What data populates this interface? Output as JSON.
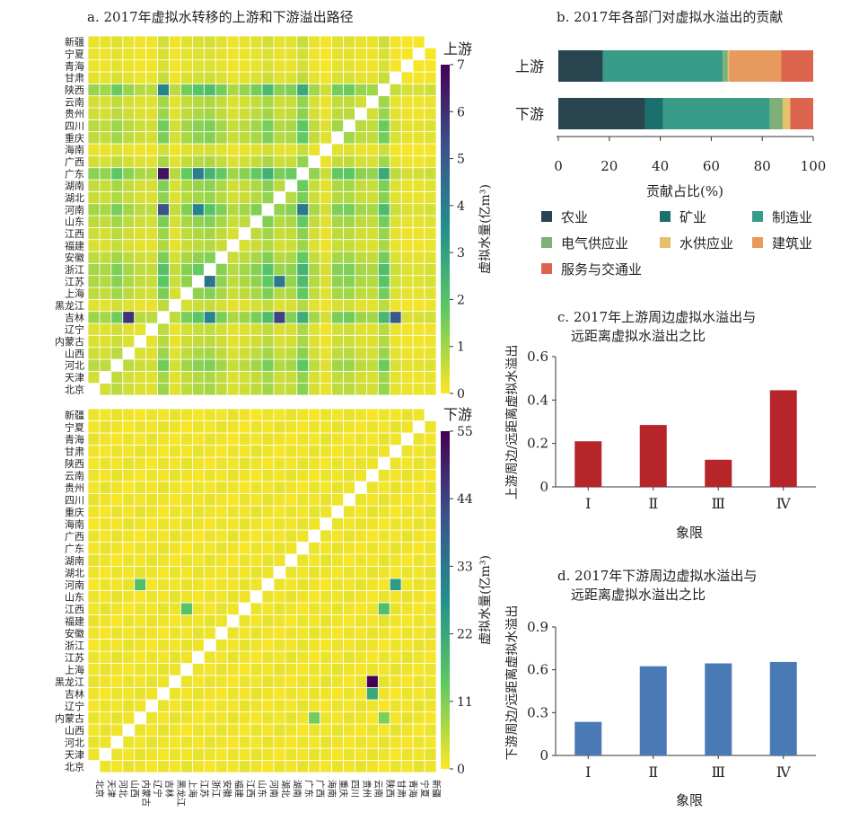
{
  "provinces": [
    "北京",
    "天津",
    "河北",
    "山西",
    "内蒙古",
    "辽宁",
    "吉林",
    "黑龙江",
    "上海",
    "江苏",
    "浙江",
    "安徽",
    "福建",
    "江西",
    "山东",
    "河南",
    "湖北",
    "湖南",
    "广东",
    "广西",
    "海南",
    "重庆",
    "四川",
    "贵州",
    "云南",
    "陕西",
    "甘肃",
    "青海",
    "宁夏",
    "新疆"
  ],
  "panel_a": {
    "title": "a. 2017年虚拟水转移的上游和下游溢出路径",
    "upstream": {
      "label": "上游",
      "colorbar_label": "虚拟水量(亿m³)",
      "colorbar_ticks": [
        "0",
        "1",
        "2",
        "3",
        "4",
        "5",
        "6",
        "7"
      ],
      "vmax": 7
    },
    "downstream": {
      "label": "下游",
      "colorbar_label": "虚拟水量(亿m³)",
      "colorbar_ticks": [
        "0",
        "11",
        "22",
        "33",
        "44",
        "55"
      ],
      "vmax": 55
    }
  },
  "chart_data": [
    {
      "type": "bar",
      "stacked": true,
      "orientation": "horizontal",
      "title": "b. 2017年各部门对虚拟水溢出的贡献",
      "xlabel": "贡献占比(%)",
      "xlim": [
        0,
        100
      ],
      "xticks": [
        "0",
        "20",
        "40",
        "60",
        "80",
        "100"
      ],
      "categories": [
        "上游",
        "下游"
      ],
      "series": [
        {
          "name": "农业",
          "color": "#27444f",
          "values": [
            17.5,
            34
          ]
        },
        {
          "name": "矿业",
          "color": "#1b6f6c",
          "values": [
            0,
            7
          ]
        },
        {
          "name": "制造业",
          "color": "#389b87",
          "values": [
            47,
            42
          ]
        },
        {
          "name": "电气供应业",
          "color": "#7fb07a",
          "values": [
            2,
            5
          ]
        },
        {
          "name": "水供应业",
          "color": "#e6c06a",
          "values": [
            0.5,
            3
          ]
        },
        {
          "name": "建筑业",
          "color": "#e89a5e",
          "values": [
            20.5,
            0
          ]
        },
        {
          "name": "服务与交通业",
          "color": "#dd6550",
          "values": [
            12.5,
            9
          ]
        }
      ],
      "legend_placement": "bottom"
    },
    {
      "type": "bar",
      "title_line1": "c. 2017年上游周边虚拟水溢出与",
      "title_line2": "远距离虚拟水溢出之比",
      "ylabel": "上游周边/远距离虚拟水溢出",
      "xlabel": "象限",
      "categories": [
        "Ⅰ",
        "Ⅱ",
        "Ⅲ",
        "Ⅳ"
      ],
      "values": [
        0.21,
        0.285,
        0.125,
        0.445
      ],
      "ylim": [
        0,
        0.6
      ],
      "yticks": [
        "0",
        "0.2",
        "0.4",
        "0.6"
      ],
      "color": "#b5252a"
    },
    {
      "type": "bar",
      "title_line1": "d. 2017年下游周边虚拟水溢出与",
      "title_line2": "远距离虚拟水溢出之比",
      "ylabel": "下游周边/远距离虚拟水溢出",
      "xlabel": "象限",
      "categories": [
        "Ⅰ",
        "Ⅱ",
        "Ⅲ",
        "Ⅳ"
      ],
      "values": [
        0.235,
        0.625,
        0.645,
        0.655
      ],
      "ylim": [
        0,
        0.9
      ],
      "yticks": [
        "0",
        "0.3",
        "0.6",
        "0.9"
      ],
      "color": "#4a7ab5"
    }
  ]
}
